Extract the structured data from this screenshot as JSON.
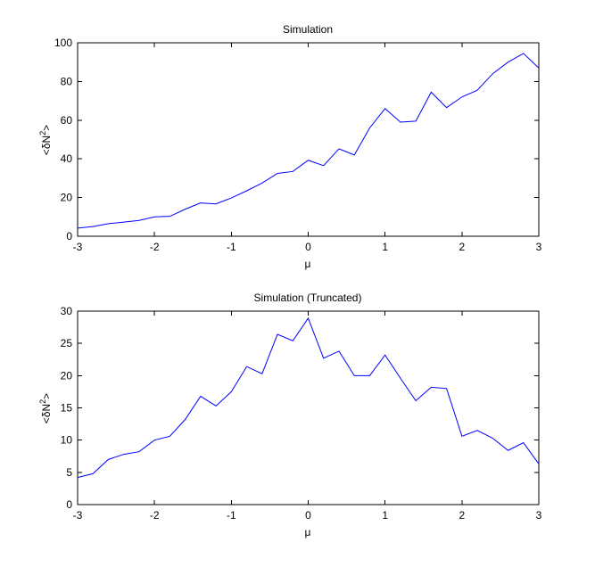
{
  "chart_data": [
    {
      "type": "line",
      "title": "Simulation",
      "xlabel": "μ",
      "ylabel": "<δN²>",
      "xlim": [
        -3,
        3
      ],
      "ylim": [
        0,
        100
      ],
      "xticks": [
        -3,
        -2,
        -1,
        0,
        1,
        2,
        3
      ],
      "yticks": [
        0,
        20,
        40,
        60,
        80,
        100
      ],
      "grid": false,
      "line_color": "#0000ff",
      "series": [
        {
          "x": [
            -3.0,
            -2.8,
            -2.6,
            -2.4,
            -2.2,
            -2.0,
            -1.8,
            -1.6,
            -1.4,
            -1.2,
            -1.0,
            -0.8,
            -0.6,
            -0.4,
            -0.2,
            0.0,
            0.2,
            0.4,
            0.6,
            0.8,
            1.0,
            1.2,
            1.4,
            1.6,
            1.8,
            2.0,
            2.2,
            2.4,
            2.6,
            2.8,
            3.0
          ],
          "y": [
            4.2,
            5.0,
            6.5,
            7.3,
            8.2,
            10.0,
            10.3,
            14.0,
            17.2,
            16.7,
            19.8,
            23.5,
            27.5,
            32.5,
            33.5,
            39.3,
            36.5,
            45.2,
            42.0,
            56.0,
            66.0,
            59.0,
            59.5,
            74.5,
            66.5,
            72.0,
            75.5,
            84.0,
            90.0,
            94.5,
            87.0
          ]
        }
      ]
    },
    {
      "type": "line",
      "title": "Simulation (Truncated)",
      "xlabel": "μ",
      "ylabel": "<δN²>",
      "xlim": [
        -3,
        3
      ],
      "ylim": [
        0,
        30
      ],
      "xticks": [
        -3,
        -2,
        -1,
        0,
        1,
        2,
        3
      ],
      "yticks": [
        0,
        5,
        10,
        15,
        20,
        25,
        30
      ],
      "grid": false,
      "line_color": "#0000ff",
      "series": [
        {
          "x": [
            -3.0,
            -2.8,
            -2.6,
            -2.4,
            -2.2,
            -2.0,
            -1.8,
            -1.6,
            -1.4,
            -1.2,
            -1.0,
            -0.8,
            -0.6,
            -0.4,
            -0.2,
            0.0,
            0.2,
            0.4,
            0.6,
            0.8,
            1.0,
            1.2,
            1.4,
            1.6,
            1.8,
            2.0,
            2.2,
            2.4,
            2.6,
            2.8,
            3.0
          ],
          "y": [
            4.2,
            4.8,
            7.0,
            7.8,
            8.2,
            10.0,
            10.6,
            13.2,
            16.8,
            15.3,
            17.5,
            21.4,
            20.3,
            26.4,
            25.4,
            28.9,
            22.7,
            23.8,
            20.0,
            20.0,
            23.2,
            19.6,
            16.1,
            18.2,
            18.0,
            10.6,
            11.5,
            10.3,
            8.4,
            9.6,
            6.3
          ]
        }
      ]
    }
  ]
}
